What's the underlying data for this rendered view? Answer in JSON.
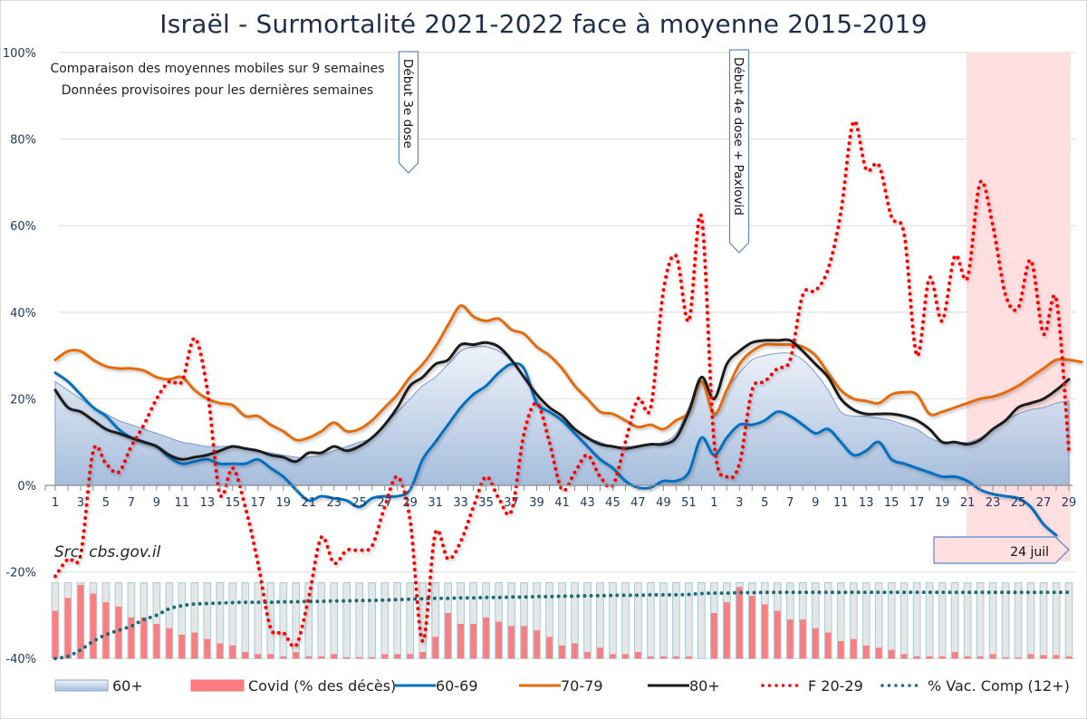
{
  "title": "Israël - Surmortalité 2021-2022 face à moyenne 2015-2019",
  "subtitles": [
    "Comparaison des moyennes mobiles sur 9 semaines",
    "Données provisoires pour les dernières semaines"
  ],
  "source": "Src: cbs.gov.il",
  "annotations": {
    "third_dose": "Début 3e dose",
    "fourth_dose": "Début 4e dose + Paxlovid",
    "last_date": "24 juil"
  },
  "colors": {
    "area_60plus": "#a9bfdc",
    "covid": "#ff7c80",
    "line_60_69": "#0070c0",
    "line_70_79": "#e36c09",
    "line_80plus": "#1a1a1a",
    "f_20_29": "#ff0000",
    "vac": "#1f6b75",
    "highlight": "#ffdfe0"
  },
  "chart_data": {
    "type": "line",
    "title": "Israël - Surmortalité 2021-2022 face à moyenne 2015-2019",
    "xlabel": "",
    "ylabel": "",
    "ylim": [
      -40,
      100
    ],
    "y_ticks": [
      "100%",
      "80%",
      "60%",
      "40%",
      "20%",
      "0%",
      "-20%",
      "-40%"
    ],
    "y_tick_values": [
      100,
      80,
      60,
      40,
      20,
      0,
      -20,
      -40
    ],
    "grid": true,
    "legend_position": "bottom",
    "x_weeks_2021": [
      1,
      2,
      3,
      4,
      5,
      6,
      7,
      8,
      9,
      10,
      11,
      12,
      13,
      14,
      15,
      16,
      17,
      18,
      19,
      20,
      21,
      22,
      23,
      24,
      25,
      26,
      27,
      28,
      29,
      30,
      31,
      32,
      33,
      34,
      35,
      36,
      37,
      38,
      39,
      40,
      41,
      42,
      43,
      44,
      45,
      46,
      47,
      48,
      49,
      50,
      51,
      52
    ],
    "x_weeks_2022": [
      1,
      2,
      3,
      4,
      5,
      6,
      7,
      8,
      9,
      10,
      11,
      12,
      13,
      14,
      15,
      16,
      17,
      18,
      19,
      20,
      21,
      22,
      23,
      24,
      25,
      26,
      27,
      28,
      29
    ],
    "x_tick_labels": [
      "1",
      "3",
      "5",
      "7",
      "9",
      "11",
      "13",
      "15",
      "17",
      "19",
      "21",
      "23",
      "25",
      "27",
      "29",
      "31",
      "33",
      "35",
      "37",
      "39",
      "41",
      "43",
      "45",
      "47",
      "49",
      "51",
      "1",
      "3",
      "5",
      "7",
      "9",
      "11",
      "13",
      "15",
      "17",
      "19",
      "21",
      "23",
      "25",
      "27",
      "29"
    ],
    "highlight_range": {
      "from": "2022-W21",
      "to": "2022-W29",
      "label": "Données provisoires"
    },
    "series": [
      {
        "name": "60+",
        "type": "area",
        "values": [
          24,
          22,
          20,
          18,
          16.5,
          15,
          14,
          13,
          12,
          11,
          10,
          9.5,
          9,
          9,
          9,
          8.5,
          8,
          7.5,
          7,
          6.5,
          6.5,
          7,
          8,
          9,
          10,
          11,
          14,
          17,
          20,
          23,
          25,
          28,
          31,
          32,
          32,
          31,
          29,
          25,
          20,
          17,
          15,
          13,
          11,
          10,
          9,
          9,
          9,
          9.5,
          10,
          12,
          18,
          24,
          16,
          22,
          26,
          29,
          30,
          30.5,
          30.5,
          29,
          26,
          22,
          17,
          16,
          16,
          15.5,
          15,
          14,
          13,
          11,
          10,
          10,
          10,
          11,
          13,
          15,
          16.5,
          17.5,
          18,
          19,
          19.5
        ]
      },
      {
        "name": "60-69",
        "type": "line",
        "values": [
          26,
          24,
          21,
          18,
          16,
          13,
          11,
          10,
          9,
          6.5,
          5,
          5.5,
          6,
          5,
          5,
          5,
          6,
          4,
          2,
          -1,
          -3.5,
          -2.5,
          -3,
          -3.5,
          -5,
          -3,
          -2.5,
          -2.5,
          -1,
          6,
          10,
          14,
          18,
          21,
          23,
          26,
          28,
          27,
          19,
          17,
          15,
          12,
          9,
          6,
          4,
          1,
          -0.5,
          -0.5,
          1,
          1,
          3,
          11,
          7,
          11,
          14,
          14,
          15,
          17,
          16,
          14,
          12,
          13,
          10,
          7,
          8,
          10,
          6,
          5,
          4,
          3,
          2,
          2,
          1,
          -1,
          -2,
          -2.5,
          -3,
          -5,
          -9,
          -11.5
        ]
      },
      {
        "name": "70-79",
        "type": "line",
        "values": [
          29,
          31,
          31,
          29,
          27.5,
          27,
          27,
          26.5,
          25,
          24.5,
          25,
          22,
          20,
          19,
          18.5,
          16,
          16,
          14,
          12.5,
          10.5,
          11,
          12.5,
          14.5,
          12.5,
          13,
          15,
          18,
          21,
          25,
          28,
          32,
          37,
          41.5,
          39,
          38,
          38.5,
          36,
          35,
          32,
          30,
          27,
          23,
          20,
          17,
          16.5,
          15,
          13.5,
          14,
          13,
          15,
          17,
          24,
          16.5,
          22,
          28,
          31,
          32.5,
          32.5,
          32.5,
          32,
          30,
          26,
          22,
          20,
          19.5,
          19,
          21,
          21.5,
          21,
          16.5,
          17,
          18,
          19,
          20,
          20.5,
          21.5,
          23,
          25,
          27,
          29,
          29,
          28.5
        ]
      },
      {
        "name": "80+",
        "type": "line",
        "values": [
          22,
          18,
          17,
          15,
          13,
          12,
          11,
          10,
          9,
          7,
          6,
          6.5,
          7,
          8,
          9,
          8.5,
          8,
          7,
          6.5,
          5.5,
          7.5,
          7.5,
          9,
          8,
          9,
          11,
          14,
          18,
          23,
          25,
          28,
          29,
          32.5,
          32.5,
          33,
          32,
          29,
          25,
          21,
          18,
          16,
          13,
          11,
          9.5,
          9,
          8.5,
          9,
          9.5,
          9.5,
          11,
          17,
          25,
          20,
          28,
          31,
          33,
          33.5,
          33.5,
          33.5,
          31,
          28,
          25,
          20,
          17.5,
          16.5,
          16.5,
          16.5,
          16,
          15,
          13,
          10,
          10,
          9.5,
          10.5,
          13,
          15,
          18,
          19,
          20,
          22,
          24.5
        ]
      },
      {
        "name": "F 20-29",
        "type": "line",
        "values": [
          -21,
          -17,
          -16,
          8,
          5,
          3,
          9,
          14,
          20,
          24,
          24,
          34,
          22,
          -2,
          4,
          -5,
          -18,
          -33,
          -34,
          -37,
          -26,
          -12,
          -18,
          -15,
          -15,
          -14,
          -5,
          2,
          -8,
          -36,
          -11,
          -17,
          -13,
          -5,
          2,
          -3,
          -6,
          12,
          19,
          10,
          -1,
          3,
          7,
          2,
          0,
          10,
          20,
          18,
          45,
          53,
          38,
          62,
          10,
          2,
          5,
          22,
          24,
          27,
          29,
          44,
          45,
          50,
          63,
          84,
          73,
          74,
          62,
          58,
          30,
          48,
          38,
          53,
          48,
          70,
          60,
          44,
          41,
          52,
          35,
          43,
          8
        ]
      },
      {
        "name": "% Vac. Comp (12+)",
        "type": "line",
        "values": [
          -40,
          -39.5,
          -38,
          -36,
          -34.5,
          -33.5,
          -32.5,
          -31,
          -30,
          -28.5,
          -27.8,
          -27.4,
          -27.3,
          -27.2,
          -27.1,
          -27,
          -27,
          -27,
          -26.9,
          -26.9,
          -26.8,
          -26.8,
          -26.7,
          -26.7,
          -26.6,
          -26.6,
          -26.5,
          -26.4,
          -26.3,
          -26.2,
          -26.1,
          -26.1,
          -26,
          -26,
          -25.9,
          -25.9,
          -25.8,
          -25.8,
          -25.7,
          -25.7,
          -25.6,
          -25.6,
          -25.5,
          -25.5,
          -25.4,
          -25.4,
          -25.4,
          -25.3,
          -25.3,
          -25.3,
          -25.2,
          -25,
          -24.9,
          -24.9,
          -24.8,
          -24.8,
          -24.7,
          -24.7,
          -24.7,
          -24.7,
          -24.7,
          -24.7,
          -24.7,
          -24.7,
          -24.7,
          -24.7,
          -24.7,
          -24.7,
          -24.7,
          -24.7,
          -24.7,
          -24.7,
          -24.7,
          -24.7,
          -24.7,
          -24.7,
          -24.7,
          -24.7,
          -24.7,
          -24.7,
          -24.7
        ]
      },
      {
        "name": "Covid (% des décès)",
        "type": "bar",
        "values": [
          11,
          14,
          17,
          15,
          13,
          12,
          9.5,
          9.5,
          8,
          7,
          5.5,
          6,
          4.5,
          3.5,
          3,
          1.5,
          1,
          1,
          0.5,
          1.5,
          0.5,
          0.5,
          1,
          0.3,
          0.3,
          0.3,
          1,
          1,
          1,
          1.5,
          5,
          10.5,
          8,
          8,
          9.5,
          8.5,
          7.5,
          7.5,
          6.5,
          5,
          3,
          3.5,
          1.5,
          2.5,
          1,
          1,
          1.5,
          0.5,
          0.5,
          0.5,
          0.5,
          0,
          10.5,
          13,
          16.5,
          14.5,
          12.5,
          11,
          9,
          9,
          7,
          6,
          4,
          4.5,
          3,
          2.5,
          2,
          1,
          0.5,
          0.5,
          0.5,
          1.5,
          0.5,
          0.5,
          1,
          0.3,
          0.3,
          1,
          0.8,
          0.8,
          0.5
        ]
      }
    ]
  },
  "legend": [
    {
      "label": "60+",
      "icon": "area-swatch"
    },
    {
      "label": "Covid (% des décès)",
      "icon": "bar-swatch"
    },
    {
      "label": "60-69",
      "icon": "line-blue"
    },
    {
      "label": "70-79",
      "icon": "line-orange"
    },
    {
      "label": "80+",
      "icon": "line-black"
    },
    {
      "label": "F 20-29",
      "icon": "dotted-red"
    },
    {
      "label": "% Vac. Comp (12+)",
      "icon": "dotted-teal"
    }
  ]
}
